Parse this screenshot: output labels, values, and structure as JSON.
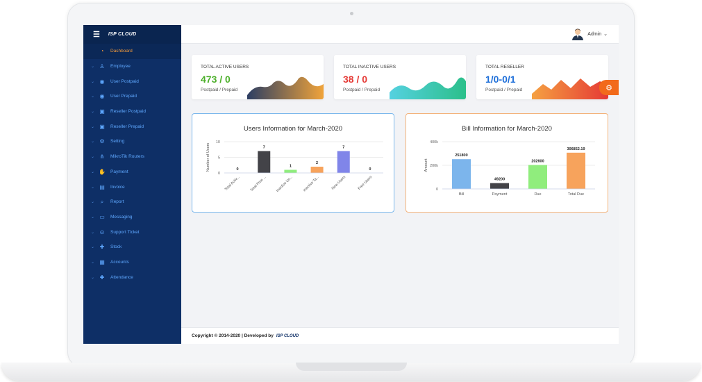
{
  "brand": {
    "logo_text": "ISP CLOUD"
  },
  "sidebar": {
    "items": [
      {
        "label": "Dashboard",
        "icon": "dashboard-icon",
        "active": true
      },
      {
        "label": "Employee",
        "icon": "user-icon"
      },
      {
        "label": "User Postpaid",
        "icon": "user-circle-icon"
      },
      {
        "label": "User Prepaid",
        "icon": "user-circle-icon"
      },
      {
        "label": "Reseller Postpaid",
        "icon": "id-card-icon"
      },
      {
        "label": "Reseller Prepaid",
        "icon": "id-card-icon"
      },
      {
        "label": "Setting",
        "icon": "gear-icon"
      },
      {
        "label": "MikroTik Routers",
        "icon": "network-icon"
      },
      {
        "label": "Payment",
        "icon": "payment-icon"
      },
      {
        "label": "Invoice",
        "icon": "invoice-icon"
      },
      {
        "label": "Report",
        "icon": "search-icon"
      },
      {
        "label": "Messaging",
        "icon": "message-icon"
      },
      {
        "label": "Support Ticket",
        "icon": "ticket-icon"
      },
      {
        "label": "Stock",
        "icon": "puzzle-icon"
      },
      {
        "label": "Accounts",
        "icon": "grid-icon"
      },
      {
        "label": "Attendance",
        "icon": "puzzle-icon"
      }
    ]
  },
  "header": {
    "user_label": "Admin"
  },
  "stats": [
    {
      "title": "TOTAL ACTIVE USERS",
      "value": "473 / 0",
      "sub": "Postpaid / Prepaid",
      "value_color": "#4caf2a"
    },
    {
      "title": "TOTAL INACTIVE USERS",
      "value": "38 / 0",
      "sub": "Postpaid / Prepaid",
      "value_color": "#e53935"
    },
    {
      "title": "TOTAL RESELLER",
      "value": "1/0-0/1",
      "sub": "Postpaid / Prepaid",
      "value_color": "#1e6fd9"
    }
  ],
  "chart_data": [
    {
      "type": "bar",
      "title": "Users Information for March-2020",
      "ylabel": "Number of Users",
      "ylim": [
        0,
        10
      ],
      "yticks": [
        "0",
        "5",
        "10"
      ],
      "categories": [
        "Total Activ...",
        "Total Free ...",
        "Inactive Us...",
        "Inactive Ta...",
        "New Users",
        "Free Users"
      ],
      "values": [
        0,
        7,
        1,
        2,
        7,
        0
      ],
      "colors": [
        "#7cb5ec",
        "#434348",
        "#90ed7d",
        "#f7a35c",
        "#8085e9",
        "#f15c80"
      ]
    },
    {
      "type": "bar",
      "title": "Bill Information for March-2020",
      "ylabel": "Amount",
      "ylim": [
        0,
        400000
      ],
      "yticks": [
        "0",
        "200k",
        "400k"
      ],
      "categories": [
        "Bill",
        "Payment",
        "Due",
        "Total Due"
      ],
      "values": [
        251800,
        49200,
        202600,
        306852.19
      ],
      "labels": [
        "251800",
        "49200",
        "202600",
        "306852.19"
      ],
      "colors": [
        "#7cb5ec",
        "#434348",
        "#90ed7d",
        "#f7a35c"
      ]
    }
  ],
  "footer": {
    "text": "Copyright © 2014-2020 | Developed by",
    "logo_text": "ISP CLOUD"
  }
}
